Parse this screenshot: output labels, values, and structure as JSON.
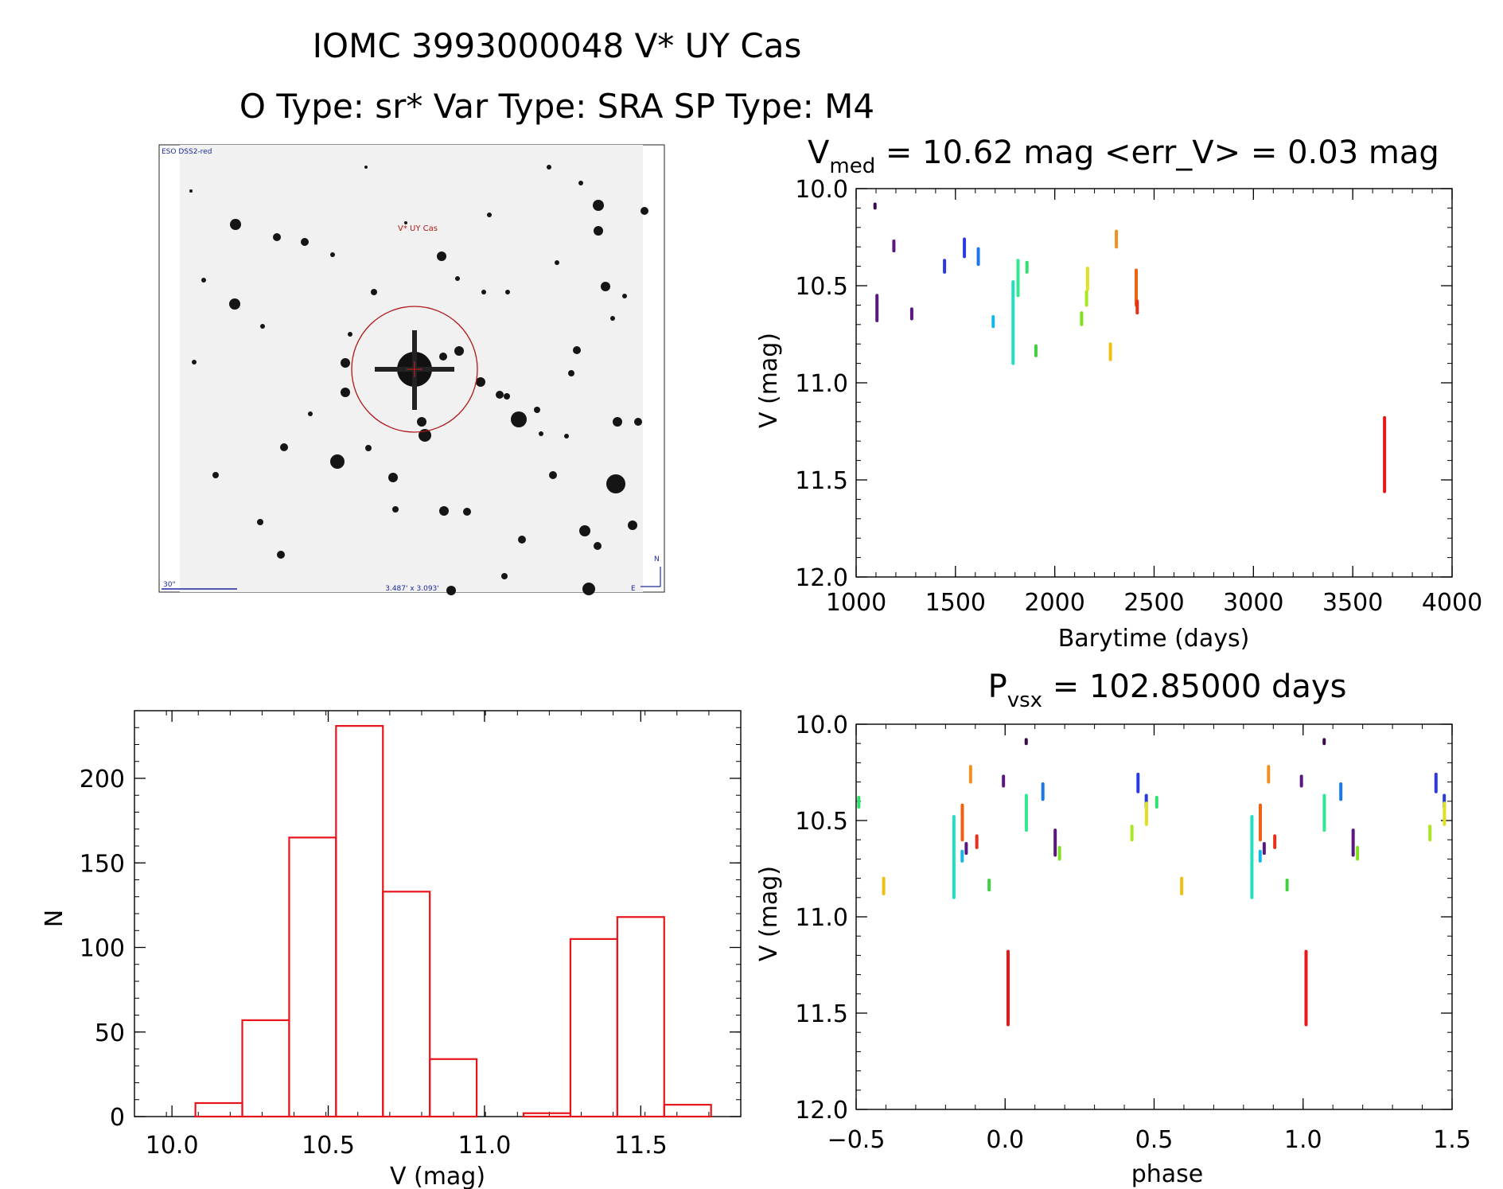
{
  "header": {
    "title": "IOMC 3993000048   V* UY Cas",
    "subtitle": "O Type: sr*  Var Type: SRA  SP Type: M4"
  },
  "sky_image": {
    "label_top_left": "ESO DSS2-red",
    "target_label": "V* UY Cas",
    "scale_label": "30\"",
    "fov_label": "3.487' x 3.093'",
    "north_label": "N",
    "east_label": "E"
  },
  "colors": {
    "histogram": "#e8141b",
    "marker_circle": "#b01717",
    "scale_bar": "#1c2a9c"
  },
  "chart_data": [
    {
      "id": "lightcurve",
      "type": "scatter",
      "title_main": "V",
      "title_sub": "med",
      "title_rest": " = 10.62 mag <err_V> = 0.03 mag",
      "xlabel": "Barytime (days)",
      "ylabel": "V (mag)",
      "xlim": [
        1000,
        4000
      ],
      "ylim": [
        12.0,
        10.0
      ],
      "xticks": [
        1000,
        1500,
        2000,
        2500,
        3000,
        3500,
        4000
      ],
      "yticks": [
        "10.0",
        "10.5",
        "11.0",
        "11.5",
        "12.0"
      ],
      "series": [
        {
          "name": "s1",
          "color": "#3a0a4a",
          "x": 1095,
          "y": [
            10.08,
            10.1
          ]
        },
        {
          "name": "s2",
          "color": "#5a1780",
          "x": 1105,
          "y": [
            10.55,
            10.68
          ]
        },
        {
          "name": "s3",
          "color": "#5a1780",
          "x": 1190,
          "y": [
            10.27,
            10.32
          ]
        },
        {
          "name": "s4",
          "color": "#5a1780",
          "x": 1280,
          "y": [
            10.62,
            10.67
          ]
        },
        {
          "name": "s5",
          "color": "#2a3ae0",
          "x": 1445,
          "y": [
            10.37,
            10.43
          ]
        },
        {
          "name": "s6",
          "color": "#2a3ae0",
          "x": 1545,
          "y": [
            10.26,
            10.35
          ]
        },
        {
          "name": "s7",
          "color": "#1a78e8",
          "x": 1615,
          "y": [
            10.31,
            10.39
          ]
        },
        {
          "name": "s8",
          "color": "#14b8e8",
          "x": 1690,
          "y": [
            10.66,
            10.71
          ]
        },
        {
          "name": "s9",
          "color": "#20e0c0",
          "x": 1790,
          "y": [
            10.48,
            10.9
          ]
        },
        {
          "name": "s10",
          "color": "#30e890",
          "x": 1815,
          "y": [
            10.37,
            10.55
          ]
        },
        {
          "name": "s11",
          "color": "#30e070",
          "x": 1860,
          "y": [
            10.38,
            10.43
          ]
        },
        {
          "name": "s12",
          "color": "#40d040",
          "x": 1905,
          "y": [
            10.81,
            10.86
          ]
        },
        {
          "name": "s13",
          "color": "#80e020",
          "x": 2135,
          "y": [
            10.64,
            10.7
          ]
        },
        {
          "name": "s14",
          "color": "#a8e820",
          "x": 2160,
          "y": [
            10.53,
            10.6
          ]
        },
        {
          "name": "s15",
          "color": "#e0e020",
          "x": 2165,
          "y": [
            10.41,
            10.52
          ]
        },
        {
          "name": "s16",
          "color": "#f0c010",
          "x": 2280,
          "y": [
            10.8,
            10.88
          ]
        },
        {
          "name": "s17",
          "color": "#f09020",
          "x": 2310,
          "y": [
            10.22,
            10.3
          ]
        },
        {
          "name": "s18",
          "color": "#f06010",
          "x": 2410,
          "y": [
            10.42,
            10.6
          ]
        },
        {
          "name": "s19",
          "color": "#e83018",
          "x": 2415,
          "y": [
            10.58,
            10.64
          ]
        },
        {
          "name": "s20",
          "color": "#e81818",
          "x": 3660,
          "y": [
            11.18,
            11.56
          ]
        }
      ]
    },
    {
      "id": "histogram",
      "type": "bar",
      "xlabel": "V (mag)",
      "ylabel": "N",
      "xlim": [
        9.88,
        11.82
      ],
      "ylim": [
        0,
        240
      ],
      "xticks": [
        "10.0",
        "10.5",
        "11.0",
        "11.5"
      ],
      "yticks": [
        "0",
        "50",
        "100",
        "150",
        "200"
      ],
      "bin_edges": [
        10.075,
        10.225,
        10.375,
        10.525,
        10.675,
        10.825,
        10.975,
        11.125,
        11.275,
        11.425,
        11.575,
        11.725
      ],
      "counts": [
        8,
        57,
        165,
        231,
        133,
        34,
        0,
        2,
        105,
        118,
        7,
        0
      ]
    },
    {
      "id": "phased",
      "type": "scatter",
      "title_main": "P",
      "title_sub": "vsx",
      "title_rest": " = 102.85000 days",
      "xlabel": "phase",
      "ylabel": "V (mag)",
      "xlim": [
        -0.5,
        1.5
      ],
      "ylim": [
        12.0,
        10.0
      ],
      "xticks": [
        "−0.5",
        "0.0",
        "0.5",
        "1.0",
        "1.5"
      ],
      "yticks": [
        "10.0",
        "10.5",
        "11.0",
        "11.5",
        "12.0"
      ],
      "period": 102.85
    }
  ]
}
